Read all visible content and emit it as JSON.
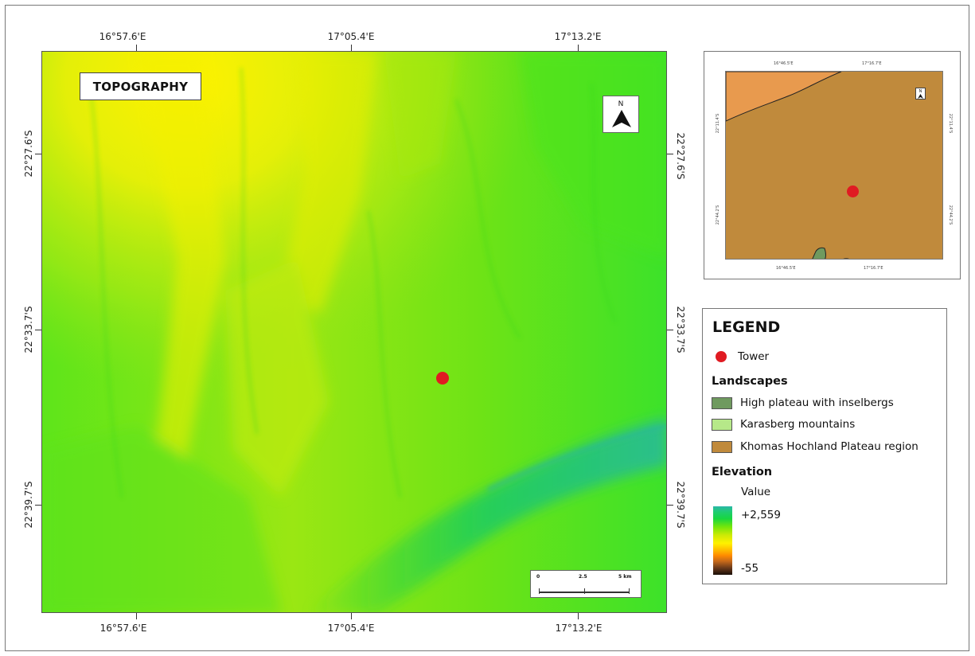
{
  "map": {
    "title": "TOPOGRAPHY",
    "north_label": "N",
    "lon_labels_top": [
      "16°57.6'E",
      "17°05.4'E",
      "17°13.2'E"
    ],
    "lon_labels_bottom": [
      "16°57.6'E",
      "17°05.4'E",
      "17°13.2'E"
    ],
    "lat_labels_left": [
      "22°27.6'S",
      "22°33.7'S",
      "22°39.7'S"
    ],
    "lat_labels_right": [
      "22°27.6'S",
      "22°33.7'S",
      "22°39.7'S"
    ],
    "scale_labels": [
      "0",
      "2.5",
      "5 km"
    ],
    "tower_marker_color": "#e01b22"
  },
  "inset": {
    "lon_labels_top": [
      "16°46.5'E",
      "17°16.7'E"
    ],
    "lon_labels_bottom": [
      "16°46.5'E",
      "17°16.7'E"
    ],
    "lat_labels_left": [
      "22°11.4'S",
      "22°44.2'S"
    ],
    "lat_labels_right": [
      "22°11.4'S",
      "22°44.2'S"
    ],
    "north_label": "N",
    "background_color": "#c08a3c"
  },
  "legend": {
    "title": "LEGEND",
    "tower_label": "Tower",
    "landscapes_title": "Landscapes",
    "landscapes": [
      {
        "label": "High plateau with inselbergs",
        "color": "#6f9a5f"
      },
      {
        "label": "Karasberg mountains",
        "color": "#b6e889"
      },
      {
        "label": "Khomas Hochland Plateau region",
        "color": "#c08a3c"
      }
    ],
    "elevation_title": "Elevation",
    "value_label": "Value",
    "max_label": "+2,559",
    "min_label": "-55"
  }
}
